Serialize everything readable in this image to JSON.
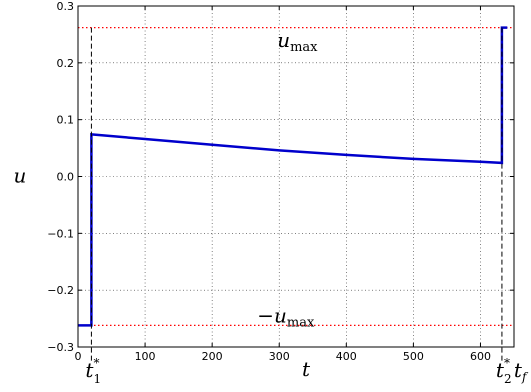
{
  "chart_data": {
    "type": "line",
    "title": "",
    "xlabel": "t",
    "ylabel": "u",
    "xlim": [
      0,
      650
    ],
    "ylim": [
      -0.3,
      0.3
    ],
    "x_ticks": [
      0,
      100,
      200,
      300,
      400,
      500,
      600
    ],
    "x_tick_labels": [
      "0",
      "100",
      "200",
      "300",
      "400",
      "500",
      "600"
    ],
    "y_ticks": [
      -0.3,
      -0.2,
      -0.1,
      0.0,
      0.1,
      0.2,
      0.3
    ],
    "y_tick_labels": [
      "−0.3",
      "−0.2",
      "−0.1",
      "0.0",
      "0.1",
      "0.2",
      "0.3"
    ],
    "grid": true,
    "series": [
      {
        "color": "#0000cc",
        "style": "solid",
        "x": [
          0,
          20,
          20,
          100,
          200,
          300,
          400,
          500,
          600,
          632,
          632,
          640
        ],
        "y": [
          -0.262,
          -0.262,
          0.074,
          0.066,
          0.056,
          0.046,
          0.038,
          0.031,
          0.026,
          0.024,
          0.262,
          0.262
        ]
      },
      {
        "color": "#ff0000",
        "style": "dotted",
        "x": [
          0,
          650
        ],
        "y": [
          0.262,
          0.262
        ]
      },
      {
        "color": "#ff0000",
        "style": "dotted",
        "x": [
          0,
          650
        ],
        "y": [
          -0.262,
          -0.262
        ]
      }
    ],
    "vertical_markers": [
      {
        "x": 20,
        "label_base": "t",
        "label_sub": "1",
        "label_sup": "*"
      },
      {
        "x": 632,
        "label_base": "t",
        "label_sub": "2",
        "label_sup": "*"
      }
    ],
    "final_time_label": {
      "base": "t",
      "sub": "f"
    },
    "annotations": {
      "umax_pos": {
        "base": "u",
        "sub": "max",
        "x": 300,
        "y": 0.24
      },
      "umax_neg": {
        "prefix": "−",
        "base": "u",
        "sub": "max",
        "x": 300,
        "y": -0.245
      }
    }
  }
}
